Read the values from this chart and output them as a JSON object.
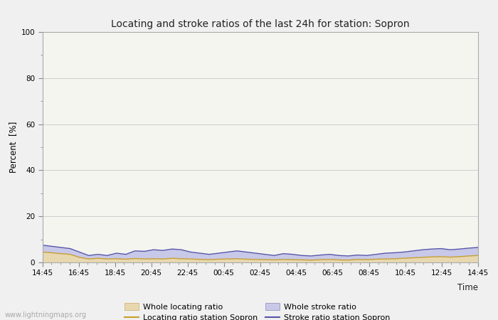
{
  "title": "Locating and stroke ratios of the last 24h for station: Sopron",
  "xlabel": "Time",
  "ylabel": "Percent  [%]",
  "xlim": [
    0,
    48
  ],
  "ylim": [
    0,
    100
  ],
  "yticks": [
    0,
    20,
    40,
    60,
    80,
    100
  ],
  "ytick_minor": [
    10,
    30,
    50,
    70,
    90
  ],
  "xtick_labels": [
    "14:45",
    "16:45",
    "18:45",
    "20:45",
    "22:45",
    "00:45",
    "02:45",
    "04:45",
    "06:45",
    "08:45",
    "10:45",
    "12:45",
    "14:45"
  ],
  "fig_bg_color": "#f0f0f0",
  "plot_bg_color": "#f5f5f0",
  "grid_color": "#cccccc",
  "watermark": "www.lightningmaps.org",
  "locating_fill_color": "#e8d8b0",
  "locating_line_color": "#c8a030",
  "stroke_fill_color": "#c8c8e8",
  "stroke_line_color": "#5555aa",
  "whole_locating": [
    4.5,
    4.2,
    3.8,
    3.5,
    2.2,
    1.5,
    1.8,
    1.5,
    1.6,
    1.4,
    1.7,
    1.5,
    1.6,
    1.5,
    1.8,
    1.6,
    1.5,
    1.3,
    1.2,
    1.4,
    1.5,
    1.6,
    1.4,
    1.3,
    1.2,
    1.1,
    1.3,
    1.2,
    1.1,
    1.0,
    1.2,
    1.3,
    1.1,
    1.0,
    1.3,
    1.2,
    1.4,
    1.5,
    1.6,
    1.8,
    2.0,
    2.2,
    2.4,
    2.5,
    2.3,
    2.5,
    2.8,
    3.0
  ],
  "whole_stroke": [
    7.5,
    7.0,
    6.5,
    6.0,
    4.5,
    3.0,
    3.5,
    3.0,
    4.0,
    3.5,
    5.0,
    4.8,
    5.5,
    5.2,
    5.8,
    5.5,
    4.5,
    4.0,
    3.5,
    4.0,
    4.5,
    5.0,
    4.5,
    4.0,
    3.5,
    3.0,
    3.8,
    3.5,
    3.0,
    2.8,
    3.2,
    3.5,
    3.0,
    2.8,
    3.2,
    3.0,
    3.5,
    4.0,
    4.2,
    4.5,
    5.0,
    5.5,
    5.8,
    6.0,
    5.5,
    5.8,
    6.2,
    6.5
  ],
  "station_locating": [
    4.5,
    4.2,
    3.8,
    3.5,
    2.2,
    1.5,
    1.8,
    1.5,
    1.6,
    1.4,
    1.7,
    1.5,
    1.6,
    1.5,
    1.8,
    1.6,
    1.5,
    1.3,
    1.2,
    1.4,
    1.5,
    1.6,
    1.4,
    1.3,
    1.2,
    1.1,
    1.3,
    1.2,
    1.1,
    1.0,
    1.2,
    1.3,
    1.1,
    1.0,
    1.3,
    1.2,
    1.4,
    1.5,
    1.6,
    1.8,
    2.0,
    2.2,
    2.4,
    2.5,
    2.3,
    2.5,
    2.8,
    3.0
  ],
  "station_stroke": [
    7.5,
    7.0,
    6.5,
    6.0,
    4.5,
    3.0,
    3.5,
    3.0,
    4.0,
    3.5,
    5.0,
    4.8,
    5.5,
    5.2,
    5.8,
    5.5,
    4.5,
    4.0,
    3.5,
    4.0,
    4.5,
    5.0,
    4.5,
    4.0,
    3.5,
    3.0,
    3.8,
    3.5,
    3.0,
    2.8,
    3.2,
    3.5,
    3.0,
    2.8,
    3.2,
    3.0,
    3.5,
    4.0,
    4.2,
    4.5,
    5.0,
    5.5,
    5.8,
    6.0,
    5.5,
    5.8,
    6.2,
    6.5
  ]
}
